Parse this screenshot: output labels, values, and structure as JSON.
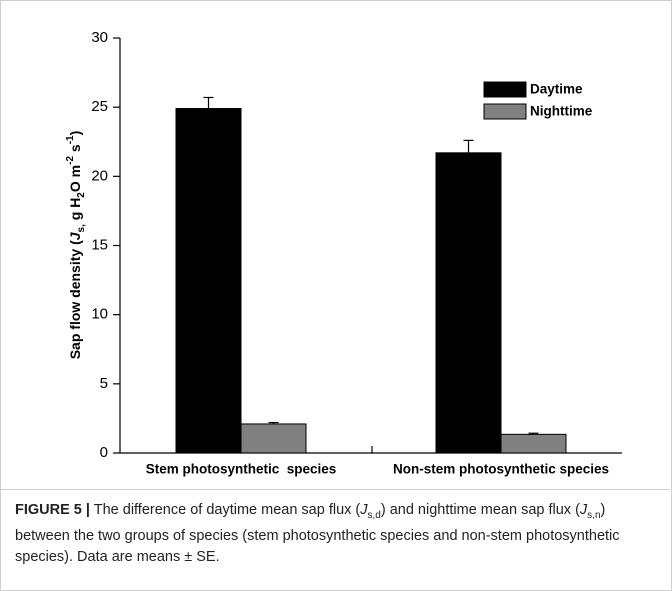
{
  "chart_data": {
    "type": "bar",
    "y_label": [
      "Sap flow density (",
      "J",
      "s,",
      " g H",
      "2",
      "O m",
      "-2",
      " s",
      "-1",
      ")"
    ],
    "categories": [
      "Stem photosynthetic  species",
      "Non-stem photosynthetic species"
    ],
    "series": [
      {
        "name": "Daytime",
        "color": "#000000",
        "values": [
          24.9,
          21.7
        ],
        "errors": [
          0.8,
          0.9
        ]
      },
      {
        "name": "Nighttime",
        "color": "#808080",
        "values": [
          2.1,
          1.35
        ],
        "errors": [
          0.1,
          0.08
        ]
      }
    ],
    "ylim": [
      0,
      30
    ],
    "yticks": [
      0,
      5,
      10,
      15,
      20,
      25,
      30
    ],
    "grid": false,
    "legend": "upper right"
  },
  "caption": [
    "FIGURE 5 |",
    " The difference of daytime mean sap flux (",
    "J",
    "s,d",
    ") and nighttime mean sap flux (",
    "J",
    "s,n",
    ") between the two groups of species (stem photosynthetic species and non-stem photosynthetic species). Data are means ± SE."
  ]
}
